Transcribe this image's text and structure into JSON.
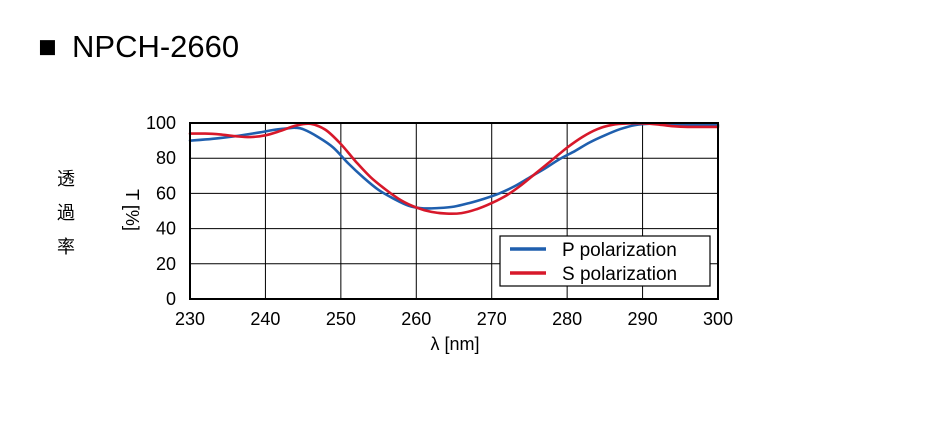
{
  "header": {
    "marker": "■",
    "title": "NPCH-2660"
  },
  "y_label_jp": [
    "透",
    "過",
    "率"
  ],
  "chart_data": {
    "type": "line",
    "xlabel": "λ [nm]",
    "ylabel": "T [%]",
    "xlim": [
      230,
      300
    ],
    "ylim": [
      0,
      100
    ],
    "xticks": [
      230,
      240,
      250,
      260,
      270,
      280,
      290,
      300
    ],
    "yticks": [
      0,
      20,
      40,
      60,
      80,
      100
    ],
    "grid": true,
    "legend": "bottom-right",
    "series": [
      {
        "name": "P polarization",
        "color": "#1f5fae",
        "x": [
          230,
          233,
          236,
          239,
          241,
          243,
          244,
          245,
          247,
          249,
          251,
          253,
          255,
          257,
          259,
          261,
          263,
          265,
          267,
          269,
          271,
          273,
          275,
          277,
          279,
          281,
          283,
          285,
          287,
          289,
          291,
          293,
          295,
          297,
          300
        ],
        "y": [
          90,
          91,
          92.5,
          94.5,
          96,
          97,
          97.3,
          96.5,
          92,
          86,
          77,
          69,
          62,
          57,
          53,
          51.5,
          51.7,
          52.5,
          54.5,
          57,
          60,
          64,
          69,
          74,
          79.5,
          84,
          89,
          93,
          96.5,
          98.8,
          99.6,
          99.4,
          99,
          98.8,
          98.8
        ]
      },
      {
        "name": "S polarization",
        "color": "#d7182a",
        "x": [
          230,
          232,
          234,
          236,
          238,
          240,
          242,
          244,
          246,
          248,
          250,
          252,
          254,
          256,
          258,
          260,
          262,
          264,
          266,
          268,
          270,
          272,
          274,
          276,
          278,
          280,
          282,
          284,
          286,
          288,
          290,
          292,
          294,
          296,
          300
        ],
        "y": [
          94,
          94,
          93.5,
          92.5,
          92,
          93,
          95.5,
          98.5,
          99.5,
          96,
          88,
          78,
          69,
          62,
          56,
          52,
          49.5,
          48.5,
          48.8,
          51,
          54.5,
          59,
          65,
          72,
          79,
          86,
          92,
          96.5,
          99,
          99.8,
          99.8,
          99.2,
          98.2,
          97.8,
          97.8
        ]
      }
    ]
  }
}
